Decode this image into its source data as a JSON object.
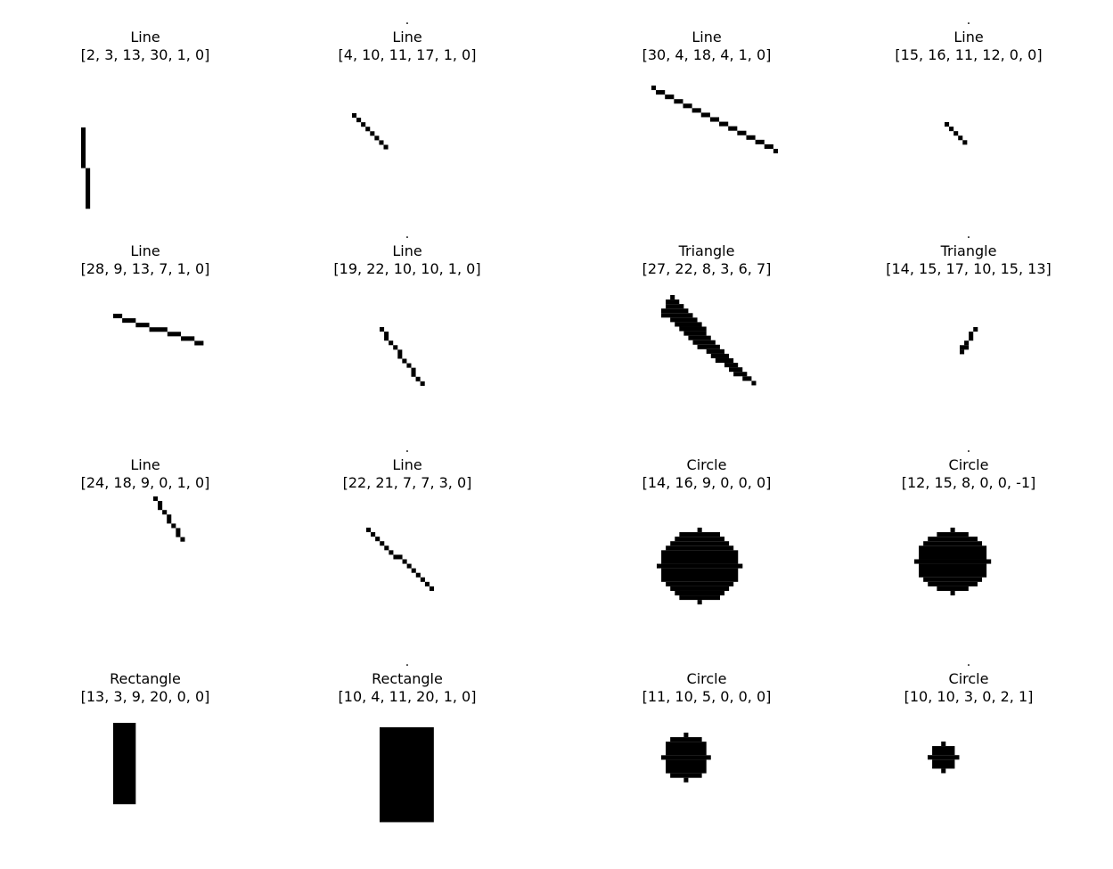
{
  "ink_color": "#000000",
  "background_color": "#ffffff",
  "panels": [
    {
      "shape": "Line",
      "params": "[2, 3, 13, 30, 1, 0]",
      "dot": false,
      "rects": [
        [
          0,
          0,
          1,
          9
        ],
        [
          1,
          9,
          1,
          9
        ]
      ]
    },
    {
      "shape": "Line",
      "params": "[4, 10, 11, 17, 1, 0]",
      "dot": true,
      "rects": [
        [
          0,
          0,
          1,
          1
        ],
        [
          1,
          1,
          1,
          1
        ],
        [
          2,
          2,
          1,
          1
        ],
        [
          3,
          3,
          1,
          1
        ],
        [
          4,
          4,
          1,
          1
        ],
        [
          5,
          5,
          1,
          1
        ],
        [
          6,
          6,
          1,
          1
        ],
        [
          7,
          7,
          1,
          1
        ]
      ]
    },
    {
      "shape": "Line",
      "params": "[30, 4, 18, 4, 1, 0]",
      "dot": false,
      "rects": [
        [
          0,
          0,
          1,
          1
        ],
        [
          1,
          1,
          2,
          1
        ],
        [
          3,
          2,
          2,
          1
        ],
        [
          5,
          3,
          2,
          1
        ],
        [
          7,
          4,
          2,
          1
        ],
        [
          9,
          5,
          2,
          1
        ],
        [
          11,
          6,
          2,
          1
        ],
        [
          13,
          7,
          2,
          1
        ],
        [
          15,
          8,
          2,
          1
        ],
        [
          17,
          9,
          2,
          1
        ],
        [
          19,
          10,
          2,
          1
        ],
        [
          21,
          11,
          2,
          1
        ],
        [
          23,
          12,
          2,
          1
        ],
        [
          25,
          13,
          2,
          1
        ],
        [
          27,
          14,
          1,
          1
        ]
      ]
    },
    {
      "shape": "Line",
      "params": "[15, 16, 11, 12, 0, 0]",
      "dot": true,
      "rects": [
        [
          0,
          0,
          1,
          1
        ],
        [
          1,
          1,
          1,
          1
        ],
        [
          2,
          2,
          1,
          1
        ],
        [
          3,
          3,
          1,
          1
        ],
        [
          4,
          4,
          1,
          1
        ]
      ]
    },
    {
      "shape": "Line",
      "params": "[28, 9, 13, 7, 1, 0]",
      "dot": false,
      "rects": [
        [
          0,
          0,
          2,
          1
        ],
        [
          2,
          1,
          3,
          1
        ],
        [
          5,
          2,
          3,
          1
        ],
        [
          8,
          3,
          4,
          1
        ],
        [
          12,
          4,
          3,
          1
        ],
        [
          15,
          5,
          3,
          1
        ],
        [
          18,
          6,
          2,
          1
        ]
      ]
    },
    {
      "shape": "Line",
      "params": "[19, 22, 10, 10, 1, 0]",
      "dot": true,
      "rects": [
        [
          0,
          0,
          1,
          1
        ],
        [
          1,
          1,
          1,
          2
        ],
        [
          2,
          3,
          1,
          1
        ],
        [
          3,
          4,
          1,
          1
        ],
        [
          4,
          5,
          1,
          2
        ],
        [
          5,
          7,
          1,
          1
        ],
        [
          6,
          8,
          1,
          1
        ],
        [
          7,
          9,
          1,
          2
        ],
        [
          8,
          11,
          1,
          1
        ],
        [
          9,
          12,
          1,
          1
        ]
      ]
    },
    {
      "shape": "Triangle",
      "params": "[27, 22, 8, 3, 6, 7]",
      "dot": false,
      "rects": [
        [
          2,
          0,
          1,
          1
        ],
        [
          1,
          1,
          3,
          1
        ],
        [
          1,
          2,
          4,
          1
        ],
        [
          0,
          3,
          6,
          1
        ],
        [
          0,
          4,
          7,
          1
        ],
        [
          2,
          5,
          6,
          1
        ],
        [
          3,
          6,
          6,
          1
        ],
        [
          4,
          7,
          6,
          1
        ],
        [
          5,
          8,
          5,
          1
        ],
        [
          6,
          9,
          5,
          1
        ],
        [
          7,
          10,
          5,
          1
        ],
        [
          8,
          11,
          5,
          1
        ],
        [
          10,
          12,
          4,
          1
        ],
        [
          11,
          13,
          4,
          1
        ],
        [
          12,
          14,
          4,
          1
        ],
        [
          14,
          15,
          3,
          1
        ],
        [
          15,
          16,
          3,
          1
        ],
        [
          16,
          17,
          3,
          1
        ],
        [
          18,
          18,
          2,
          1
        ],
        [
          20,
          19,
          1,
          1
        ]
      ]
    },
    {
      "shape": "Triangle",
      "params": "[14, 15, 17, 10, 15, 13]",
      "dot": true,
      "rects": [
        [
          3,
          0,
          1,
          1
        ],
        [
          2,
          1,
          1,
          2
        ],
        [
          1,
          3,
          1,
          1
        ],
        [
          0,
          4,
          2,
          1
        ],
        [
          0,
          5,
          1,
          1
        ]
      ]
    },
    {
      "shape": "Line",
      "params": "[24, 18, 9, 0, 1, 0]",
      "dot": false,
      "rects": [
        [
          0,
          0,
          1,
          1
        ],
        [
          1,
          1,
          1,
          2
        ],
        [
          2,
          3,
          1,
          1
        ],
        [
          3,
          4,
          1,
          2
        ],
        [
          4,
          6,
          1,
          1
        ],
        [
          5,
          7,
          1,
          2
        ],
        [
          6,
          9,
          1,
          1
        ]
      ]
    },
    {
      "shape": "Line",
      "params": "[22, 21, 7, 7, 3, 0]",
      "dot": true,
      "rects": [
        [
          0,
          0,
          1,
          1
        ],
        [
          1,
          1,
          1,
          1
        ],
        [
          2,
          2,
          1,
          1
        ],
        [
          3,
          3,
          1,
          1
        ],
        [
          4,
          4,
          1,
          1
        ],
        [
          5,
          5,
          1,
          1
        ],
        [
          6,
          6,
          2,
          1
        ],
        [
          8,
          7,
          1,
          1
        ],
        [
          9,
          8,
          1,
          1
        ],
        [
          10,
          9,
          1,
          1
        ],
        [
          11,
          10,
          1,
          1
        ],
        [
          12,
          11,
          1,
          1
        ],
        [
          13,
          12,
          1,
          1
        ],
        [
          14,
          13,
          1,
          1
        ]
      ]
    },
    {
      "shape": "Circle",
      "params": "[14, 16, 9, 0, 0, 0]",
      "dot": false,
      "rects": [
        [
          9,
          0,
          1,
          1
        ],
        [
          5,
          1,
          9,
          1
        ],
        [
          4,
          2,
          11,
          1
        ],
        [
          3,
          3,
          13,
          1
        ],
        [
          2,
          4,
          15,
          1
        ],
        [
          1,
          5,
          17,
          3
        ],
        [
          0,
          8,
          19,
          1
        ],
        [
          1,
          9,
          17,
          3
        ],
        [
          2,
          12,
          15,
          1
        ],
        [
          3,
          13,
          13,
          1
        ],
        [
          4,
          14,
          11,
          1
        ],
        [
          5,
          15,
          9,
          1
        ],
        [
          9,
          16,
          1,
          1
        ]
      ]
    },
    {
      "shape": "Circle",
      "params": "[12, 15, 8, 0, 0, -1]",
      "dot": true,
      "rects": [
        [
          8,
          0,
          1,
          1
        ],
        [
          5,
          1,
          7,
          1
        ],
        [
          3,
          2,
          11,
          1
        ],
        [
          2,
          3,
          13,
          1
        ],
        [
          1,
          4,
          15,
          3
        ],
        [
          0,
          7,
          17,
          1
        ],
        [
          1,
          8,
          15,
          3
        ],
        [
          2,
          11,
          13,
          1
        ],
        [
          3,
          12,
          11,
          1
        ],
        [
          5,
          13,
          7,
          1
        ],
        [
          8,
          14,
          1,
          1
        ]
      ]
    },
    {
      "shape": "Rectangle",
      "params": "[13, 3, 9, 20, 0, 0]",
      "dot": false,
      "rects": [
        [
          0,
          0,
          5,
          18
        ]
      ]
    },
    {
      "shape": "Rectangle",
      "params": "[10, 4, 11, 20, 1, 0]",
      "dot": true,
      "rects": [
        [
          0,
          0,
          12,
          21
        ]
      ]
    },
    {
      "shape": "Circle",
      "params": "[11, 10, 5, 0, 0, 0]",
      "dot": false,
      "rects": [
        [
          5,
          0,
          1,
          1
        ],
        [
          2,
          1,
          7,
          1
        ],
        [
          1,
          2,
          9,
          3
        ],
        [
          0,
          5,
          11,
          1
        ],
        [
          1,
          6,
          9,
          3
        ],
        [
          2,
          9,
          7,
          1
        ],
        [
          5,
          10,
          1,
          1
        ]
      ]
    },
    {
      "shape": "Circle",
      "params": "[10, 10, 3, 0, 2, 1]",
      "dot": true,
      "rects": [
        [
          3,
          0,
          1,
          1
        ],
        [
          1,
          1,
          5,
          2
        ],
        [
          0,
          3,
          7,
          1
        ],
        [
          1,
          4,
          5,
          2
        ],
        [
          3,
          6,
          1,
          1
        ]
      ]
    }
  ]
}
